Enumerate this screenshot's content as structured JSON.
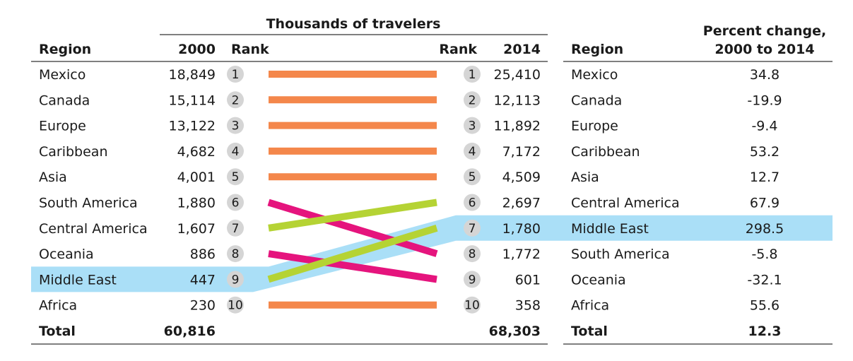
{
  "chart_data": {
    "type": "table",
    "super_header": "Thousands of travelers",
    "headers": {
      "region": "Region",
      "y2000": "2000",
      "rank_left": "Rank",
      "rank_right": "Rank",
      "y2014": "2014",
      "region2": "Region",
      "pct_line1": "Percent change,",
      "pct_line2": "2000 to 2014"
    },
    "rank_2000": [
      {
        "region": "Mexico",
        "value": "18,849",
        "rank": 1
      },
      {
        "region": "Canada",
        "value": "15,114",
        "rank": 2
      },
      {
        "region": "Europe",
        "value": "13,122",
        "rank": 3
      },
      {
        "region": "Caribbean",
        "value": "4,682",
        "rank": 4
      },
      {
        "region": "Asia",
        "value": "4,001",
        "rank": 5
      },
      {
        "region": "South America",
        "value": "1,880",
        "rank": 6
      },
      {
        "region": "Central America",
        "value": "1,607",
        "rank": 7
      },
      {
        "region": "Oceania",
        "value": "886",
        "rank": 8
      },
      {
        "region": "Middle East",
        "value": "447",
        "rank": 9
      },
      {
        "region": "Africa",
        "value": "230",
        "rank": 10
      }
    ],
    "rank_2014": [
      {
        "region": "Mexico",
        "value": "25,410",
        "rank": 1,
        "pct_change": "34.8"
      },
      {
        "region": "Canada",
        "value": "12,113",
        "rank": 2,
        "pct_change": "-19.9"
      },
      {
        "region": "Europe",
        "value": "11,892",
        "rank": 3,
        "pct_change": "-9.4"
      },
      {
        "region": "Caribbean",
        "value": "7,172",
        "rank": 4,
        "pct_change": "53.2"
      },
      {
        "region": "Asia",
        "value": "4,509",
        "rank": 5,
        "pct_change": "12.7"
      },
      {
        "region": "Central America",
        "value": "2,697",
        "rank": 6,
        "pct_change": "67.9"
      },
      {
        "region": "Middle East",
        "value": "1,780",
        "rank": 7,
        "pct_change": "298.5"
      },
      {
        "region": "South America",
        "value": "1,772",
        "rank": 8,
        "pct_change": "-5.8"
      },
      {
        "region": "Oceania",
        "value": "601",
        "rank": 9,
        "pct_change": "-32.1"
      },
      {
        "region": "Africa",
        "value": "358",
        "rank": 10,
        "pct_change": "55.6"
      }
    ],
    "totals": {
      "label": "Total",
      "y2000": "60,816",
      "y2014": "68,303",
      "pct_change": "12.3"
    },
    "highlight_region": "Middle East",
    "colors": {
      "unchanged": "#f4874b",
      "fell": "#e5147d",
      "rose": "#b5d334",
      "highlight": "#aadff7",
      "rank_circle": "#d5d5d5",
      "rule": "#333333"
    }
  }
}
